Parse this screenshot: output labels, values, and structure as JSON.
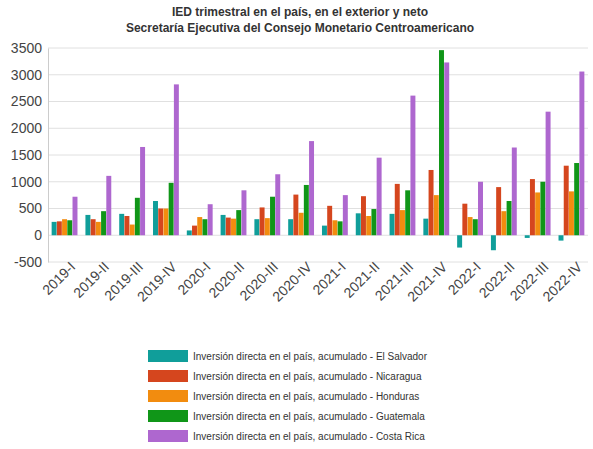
{
  "chart_data": {
    "type": "bar",
    "title": "IED trimestral en el país, en el exterior y neto",
    "subtitle": "Secretaría Ejecutiva del Consejo Monetario Centroamericano",
    "categories": [
      "2019-I",
      "2019-II",
      "2019-III",
      "2019-IV",
      "2020-I",
      "2020-II",
      "2020-III",
      "2020-IV",
      "2021-I",
      "2021-II",
      "2021-III",
      "2021-IV",
      "2022-I",
      "2022-II",
      "2022-III",
      "2022-IV"
    ],
    "series": [
      {
        "name": "Inversión directa en el país, acumulado - El Salvador",
        "color": "#109e9a",
        "values": [
          250,
          380,
          400,
          640,
          90,
          380,
          300,
          300,
          180,
          410,
          400,
          310,
          -230,
          -280,
          -50,
          -100
        ]
      },
      {
        "name": "Inversión directa en el país, acumulado - Nicaragua",
        "color": "#d5461e",
        "values": [
          260,
          300,
          360,
          500,
          180,
          330,
          520,
          760,
          550,
          730,
          960,
          1220,
          590,
          900,
          1050,
          1300
        ]
      },
      {
        "name": "Inversión directa en el país, acumulado - Honduras",
        "color": "#f28c0f",
        "values": [
          300,
          250,
          200,
          500,
          340,
          310,
          320,
          420,
          280,
          360,
          470,
          750,
          340,
          450,
          800,
          820
        ]
      },
      {
        "name": "Inversión directa en el país, acumulado - Guatemala",
        "color": "#109618",
        "values": [
          280,
          450,
          700,
          980,
          300,
          470,
          720,
          940,
          260,
          490,
          840,
          3460,
          300,
          640,
          1000,
          1350
        ]
      },
      {
        "name": "Inversión directa en el país, acumulado - Costa Rica",
        "color": "#ae67cf",
        "values": [
          720,
          1110,
          1650,
          2820,
          580,
          840,
          1140,
          1760,
          750,
          1450,
          2610,
          3230,
          1000,
          1640,
          2310,
          3060
        ]
      }
    ],
    "ylim": [
      -500,
      3500
    ],
    "yticks": [
      -500,
      0,
      500,
      1000,
      1500,
      2000,
      2500,
      3000,
      3500
    ],
    "grid": true,
    "legend": "bottom"
  }
}
